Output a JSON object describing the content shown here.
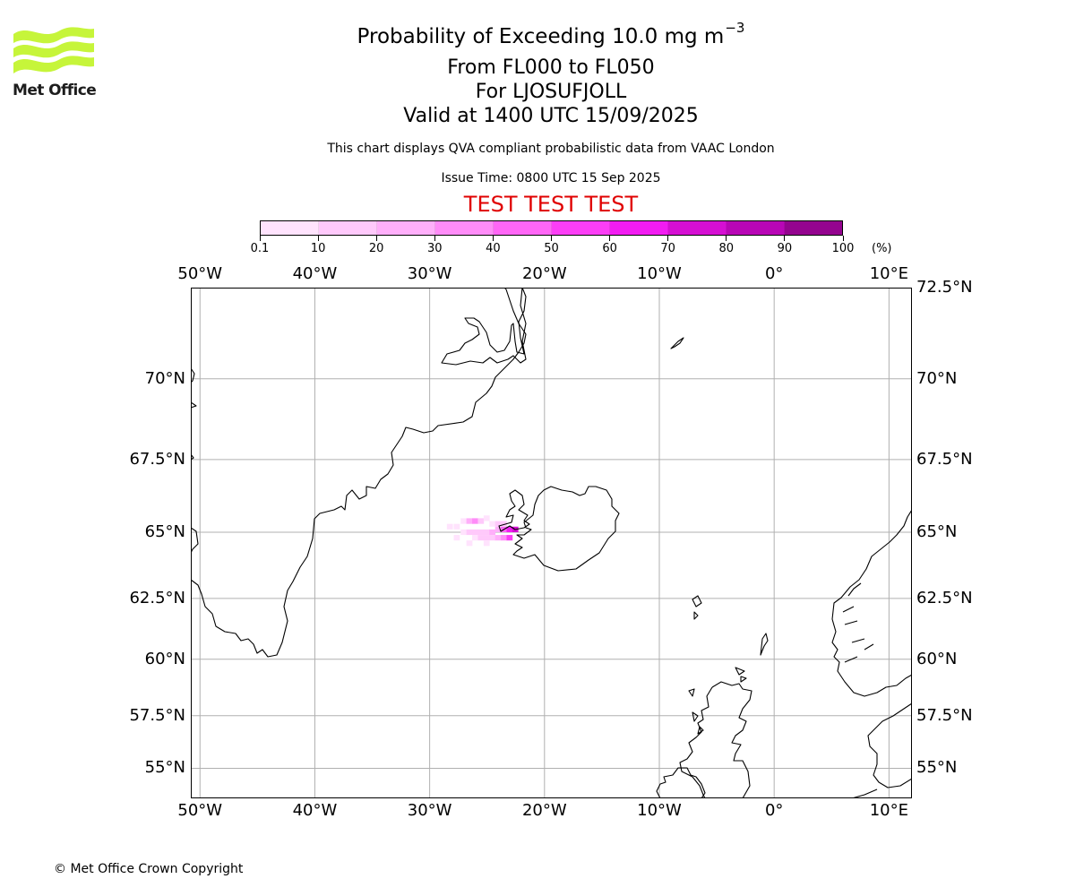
{
  "branding": {
    "logo_text": "Met Office",
    "logo_color": "#c6f53a",
    "copyright": "© Met Office Crown Copyright"
  },
  "header": {
    "title_main": "Probability of Exceeding 10.0 mg m",
    "title_exponent": "−3",
    "levels": "From FL000 to FL050",
    "volcano": "For LJOSUFJOLL",
    "valid": "Valid at 1400 UTC 15/09/2025",
    "note": "This chart displays QVA compliant probabilistic data from VAAC London",
    "issue": "Issue Time: 0800 UTC 15 Sep 2025",
    "test_banner": "TEST TEST TEST"
  },
  "colorbar": {
    "tick_labels": [
      "0.1",
      "10",
      "20",
      "30",
      "40",
      "50",
      "60",
      "70",
      "80",
      "90",
      "100"
    ],
    "unit": "(%)",
    "colors": [
      "#ffe3fd",
      "#ffc9fb",
      "#ffaffa",
      "#ff8cf8",
      "#ff66f6",
      "#fc3ef6",
      "#f21cf2",
      "#d50fd3",
      "#b806b6",
      "#94048f",
      "#6b0466"
    ]
  },
  "map": {
    "lon_labels": [
      "50°W",
      "40°W",
      "30°W",
      "20°W",
      "10°W",
      "0°",
      "10°E"
    ],
    "lat_labels_left": [
      "70°N",
      "67.5°N",
      "65°N",
      "62.5°N",
      "60°N",
      "57.5°N",
      "55°N"
    ],
    "lat_labels_right": [
      "72.5°N",
      "70°N",
      "67.5°N",
      "65°N",
      "62.5°N",
      "60°N",
      "57.5°N",
      "55°N"
    ],
    "extent": {
      "lon_min": -50.8,
      "lon_max": 12.0,
      "lat_min": 53.5,
      "lat_max": 72.5
    },
    "grid_color": "#b0b0b0",
    "coast_color": "#000000",
    "plume_cells": [
      {
        "lon": -28.5,
        "lat": 65.2,
        "p": 5
      },
      {
        "lon": -27.9,
        "lat": 65.2,
        "p": 5
      },
      {
        "lon": -27.3,
        "lat": 65.4,
        "p": 8
      },
      {
        "lon": -26.8,
        "lat": 65.4,
        "p": 20
      },
      {
        "lon": -26.3,
        "lat": 65.4,
        "p": 35
      },
      {
        "lon": -25.8,
        "lat": 65.4,
        "p": 15
      },
      {
        "lon": -25.3,
        "lat": 65.5,
        "p": 8
      },
      {
        "lon": -27.3,
        "lat": 65.0,
        "p": 8
      },
      {
        "lon": -26.8,
        "lat": 65.0,
        "p": 10
      },
      {
        "lon": -26.3,
        "lat": 65.0,
        "p": 12
      },
      {
        "lon": -25.8,
        "lat": 65.0,
        "p": 15
      },
      {
        "lon": -25.3,
        "lat": 65.0,
        "p": 18
      },
      {
        "lon": -24.8,
        "lat": 65.0,
        "p": 22
      },
      {
        "lon": -24.3,
        "lat": 65.1,
        "p": 25
      },
      {
        "lon": -23.8,
        "lat": 65.1,
        "p": 40
      },
      {
        "lon": -23.3,
        "lat": 65.1,
        "p": 62
      },
      {
        "lon": -22.8,
        "lat": 65.1,
        "p": 75
      },
      {
        "lon": -26.3,
        "lat": 64.8,
        "p": 8
      },
      {
        "lon": -25.8,
        "lat": 64.8,
        "p": 10
      },
      {
        "lon": -25.3,
        "lat": 64.8,
        "p": 12
      },
      {
        "lon": -24.8,
        "lat": 64.8,
        "p": 15
      },
      {
        "lon": -24.3,
        "lat": 64.8,
        "p": 22
      },
      {
        "lon": -23.8,
        "lat": 64.8,
        "p": 35
      },
      {
        "lon": -23.3,
        "lat": 64.8,
        "p": 55
      },
      {
        "lon": -27.9,
        "lat": 64.8,
        "p": 5
      },
      {
        "lon": -26.8,
        "lat": 64.6,
        "p": 5
      },
      {
        "lon": -25.3,
        "lat": 64.6,
        "p": 5
      },
      {
        "lon": -24.8,
        "lat": 65.3,
        "p": 8
      },
      {
        "lon": -24.3,
        "lat": 65.3,
        "p": 10
      },
      {
        "lon": -23.8,
        "lat": 65.3,
        "p": 18
      }
    ]
  }
}
